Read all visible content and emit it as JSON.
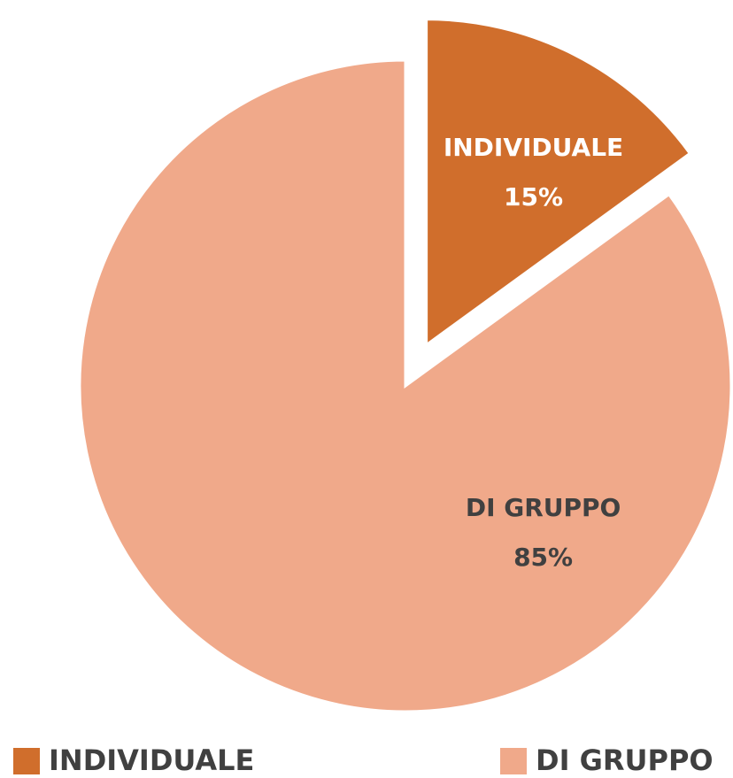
{
  "chart_data": {
    "type": "pie",
    "categories": [
      "INDIVIDUALE",
      "DI GRUPPO"
    ],
    "values": [
      15,
      85
    ],
    "value_labels": [
      "15%",
      "85%"
    ],
    "colors": [
      "#d06e2c",
      "#f0a98a"
    ],
    "exploded": [
      true,
      false
    ],
    "legend": "bottom"
  }
}
